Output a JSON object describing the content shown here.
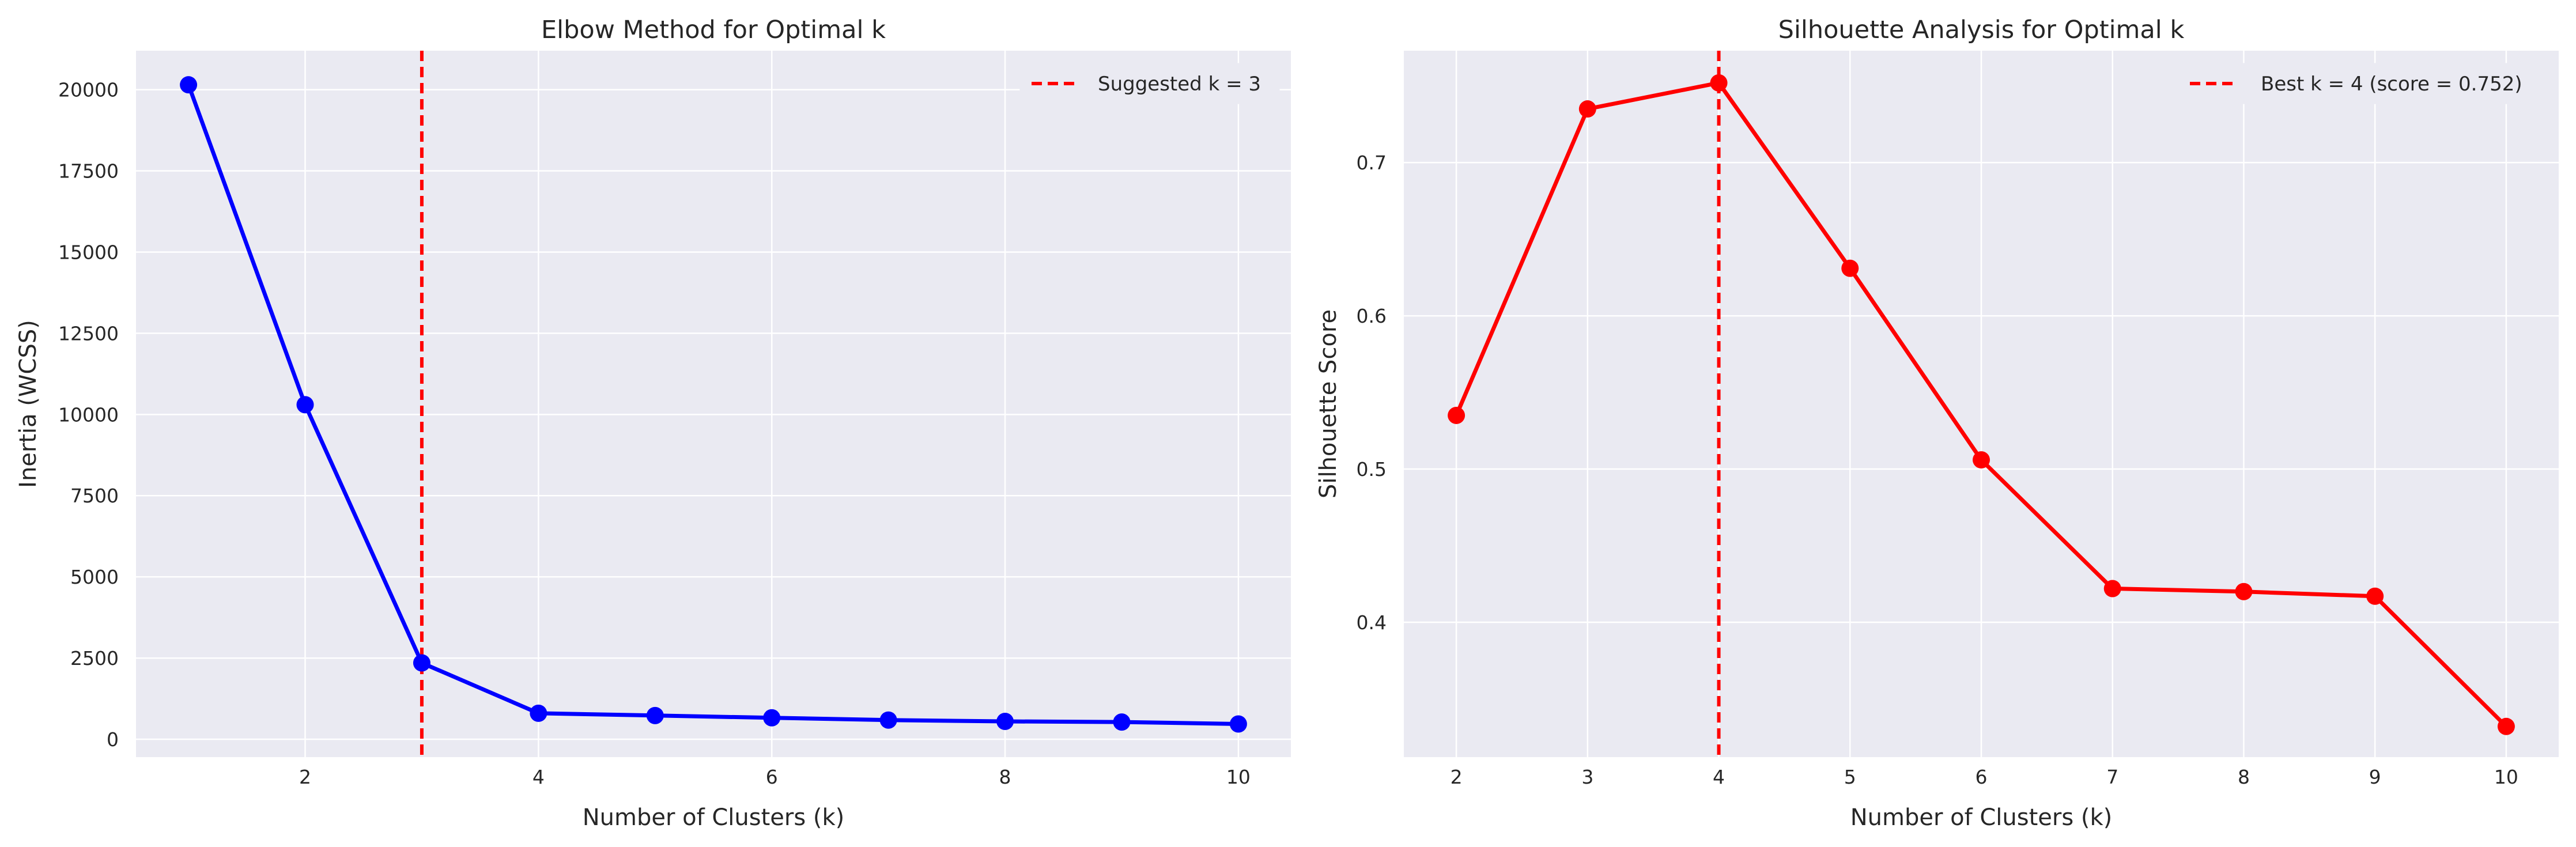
{
  "chart_data": [
    {
      "type": "line",
      "title": "Elbow Method for Optimal k",
      "xlabel": "Number of Clusters (k)",
      "ylabel": "Inertia (WCSS)",
      "x": [
        1,
        2,
        3,
        4,
        5,
        6,
        7,
        8,
        9,
        10
      ],
      "series": [
        {
          "values": [
            20150,
            10300,
            2350,
            800,
            730,
            660,
            590,
            550,
            530,
            470
          ],
          "color": "#0000ff"
        }
      ],
      "xlim": [
        0.55,
        10.45
      ],
      "ylim": [
        -550,
        21200
      ],
      "xticks": [
        2,
        4,
        6,
        8,
        10
      ],
      "xtick_labels": [
        "2",
        "4",
        "6",
        "8",
        "10"
      ],
      "yticks": [
        0,
        2500,
        5000,
        7500,
        10000,
        12500,
        15000,
        17500,
        20000
      ],
      "ytick_labels": [
        "0",
        "2500",
        "5000",
        "7500",
        "10000",
        "12500",
        "15000",
        "17500",
        "20000"
      ],
      "vline": {
        "x": 3,
        "color": "#ff0000",
        "label": "Suggested k = 3"
      },
      "legend_position": "top-right",
      "grid": true
    },
    {
      "type": "line",
      "title": "Silhouette Analysis for Optimal k",
      "xlabel": "Number of Clusters (k)",
      "ylabel": "Silhouette Score",
      "x": [
        2,
        3,
        4,
        5,
        6,
        7,
        8,
        9,
        10
      ],
      "series": [
        {
          "values": [
            0.535,
            0.735,
            0.752,
            0.631,
            0.506,
            0.422,
            0.42,
            0.417,
            0.332
          ],
          "color": "#ff0000"
        }
      ],
      "xlim": [
        1.6,
        10.4
      ],
      "ylim": [
        0.312,
        0.773
      ],
      "xticks": [
        2,
        3,
        4,
        5,
        6,
        7,
        8,
        9,
        10
      ],
      "xtick_labels": [
        "2",
        "3",
        "4",
        "5",
        "6",
        "7",
        "8",
        "9",
        "10"
      ],
      "yticks": [
        0.4,
        0.5,
        0.6,
        0.7
      ],
      "ytick_labels": [
        "0.4",
        "0.5",
        "0.6",
        "0.7"
      ],
      "vline": {
        "x": 4,
        "color": "#ff0000",
        "label": "Best k = 4 (score = 0.752)"
      },
      "legend_position": "top-right",
      "grid": true
    }
  ]
}
